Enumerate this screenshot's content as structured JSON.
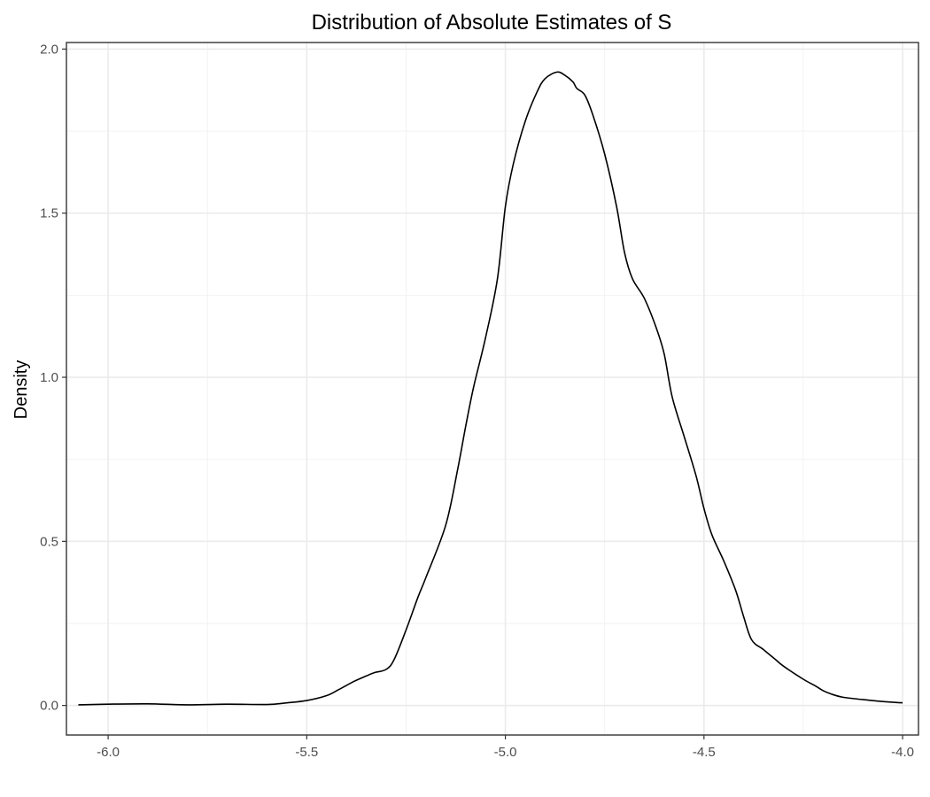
{
  "chart_data": {
    "type": "line",
    "title": "Distribution of Absolute Estimates of S",
    "xlabel": "",
    "ylabel": "Density",
    "xlim": [
      -6.105,
      -3.96
    ],
    "ylim": [
      -0.09,
      2.02
    ],
    "x_ticks": [
      -6.0,
      -5.5,
      -5.0,
      -4.5,
      -4.0
    ],
    "x_tick_labels": [
      "-6.0",
      "-5.5",
      "-5.0",
      "-4.5",
      "-4.0"
    ],
    "y_ticks": [
      0.0,
      0.5,
      1.0,
      1.5,
      2.0
    ],
    "y_tick_labels": [
      "0.0",
      "0.5",
      "1.0",
      "1.5",
      "2.0"
    ],
    "grid": true,
    "series": [
      {
        "x": [
          -6.075,
          -6.0,
          -5.9,
          -5.8,
          -5.7,
          -5.6,
          -5.55,
          -5.5,
          -5.45,
          -5.42,
          -5.38,
          -5.35,
          -5.33,
          -5.3,
          -5.28,
          -5.25,
          -5.22,
          -5.2,
          -5.15,
          -5.12,
          -5.1,
          -5.08,
          -5.05,
          -5.02,
          -5.0,
          -4.98,
          -4.95,
          -4.92,
          -4.9,
          -4.87,
          -4.85,
          -4.83,
          -4.82,
          -4.8,
          -4.78,
          -4.75,
          -4.72,
          -4.7,
          -4.68,
          -4.65,
          -4.62,
          -4.6,
          -4.58,
          -4.55,
          -4.52,
          -4.5,
          -4.48,
          -4.45,
          -4.42,
          -4.4,
          -4.38,
          -4.35,
          -4.32,
          -4.3,
          -4.25,
          -4.22,
          -4.2,
          -4.18,
          -4.15,
          -4.1,
          -4.05,
          -4.0
        ],
        "y": [
          0.002,
          0.004,
          0.005,
          0.002,
          0.004,
          0.003,
          0.008,
          0.015,
          0.03,
          0.048,
          0.074,
          0.09,
          0.1,
          0.11,
          0.14,
          0.23,
          0.33,
          0.39,
          0.55,
          0.72,
          0.85,
          0.97,
          1.12,
          1.3,
          1.52,
          1.65,
          1.78,
          1.87,
          1.91,
          1.93,
          1.92,
          1.9,
          1.88,
          1.86,
          1.8,
          1.68,
          1.52,
          1.38,
          1.3,
          1.24,
          1.15,
          1.07,
          0.94,
          0.82,
          0.7,
          0.6,
          0.52,
          0.44,
          0.35,
          0.27,
          0.2,
          0.17,
          0.14,
          0.12,
          0.08,
          0.06,
          0.045,
          0.035,
          0.025,
          0.018,
          0.012,
          0.008
        ]
      }
    ]
  }
}
